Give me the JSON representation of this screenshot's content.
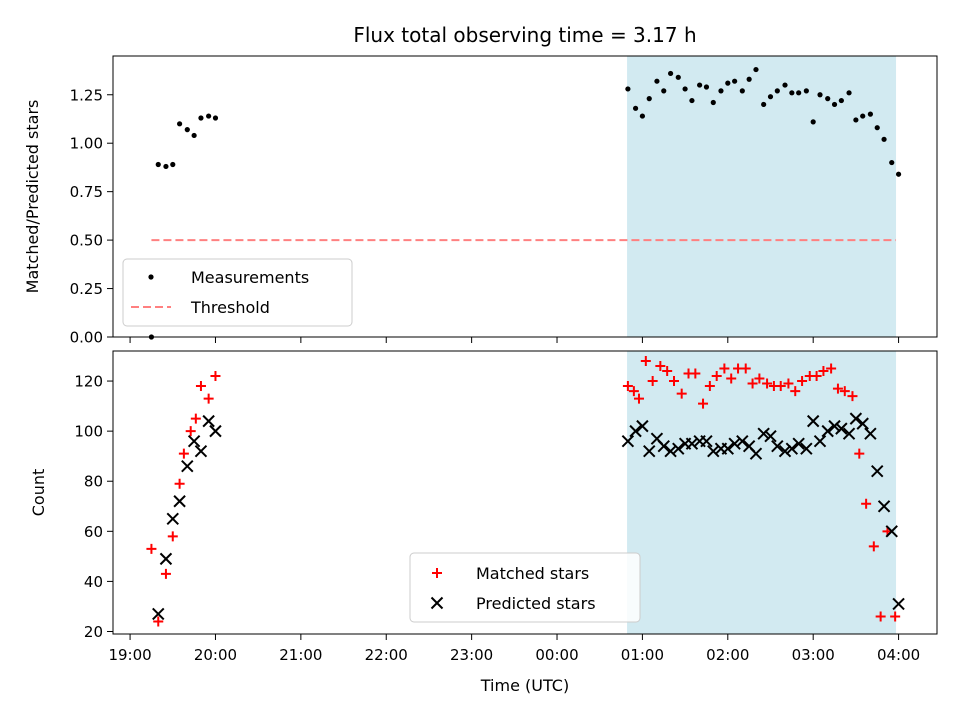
{
  "title": "Flux total observing time = 3.17 h",
  "chart_data": [
    {
      "type": "scatter",
      "ylabel": "Matched/Predicted stars",
      "xlim_hours": [
        18.8,
        28.45
      ],
      "ylim": [
        0,
        1.45
      ],
      "yticks": [
        "0.00",
        "0.25",
        "0.50",
        "0.75",
        "1.00",
        "1.25"
      ],
      "ytick_values": [
        0,
        0.25,
        0.5,
        0.75,
        1.0,
        1.25
      ],
      "shaded_span_hours": [
        24.82,
        27.97
      ],
      "shade_color": "#add8e6",
      "threshold": {
        "name": "Threshold",
        "value": 0.5,
        "x_range_hours": [
          19.25,
          27.97
        ],
        "color": "#ff8080"
      },
      "legend": {
        "placement": "lower left",
        "entries": [
          "Measurements",
          "Threshold"
        ]
      },
      "series": [
        {
          "name": "Measurements",
          "marker": "dot",
          "color": "#000000",
          "x": [
            19.25,
            19.33,
            19.42,
            19.5,
            19.58,
            19.67,
            19.75,
            19.83,
            19.92,
            20.0,
            24.83,
            24.92,
            25.0,
            25.08,
            25.17,
            25.25,
            25.33,
            25.42,
            25.5,
            25.58,
            25.67,
            25.75,
            25.83,
            25.92,
            26.0,
            26.08,
            26.17,
            26.25,
            26.33,
            26.42,
            26.5,
            26.58,
            26.67,
            26.75,
            26.83,
            26.92,
            27.0,
            27.08,
            27.17,
            27.25,
            27.33,
            27.42,
            27.5,
            27.58,
            27.67,
            27.75,
            27.83,
            27.92,
            28.0
          ],
          "y": [
            0.0,
            0.89,
            0.88,
            0.89,
            1.1,
            1.07,
            1.04,
            1.13,
            1.14,
            1.13,
            1.28,
            1.18,
            1.14,
            1.23,
            1.32,
            1.27,
            1.36,
            1.34,
            1.28,
            1.22,
            1.3,
            1.29,
            1.21,
            1.27,
            1.31,
            1.32,
            1.27,
            1.33,
            1.38,
            1.2,
            1.24,
            1.27,
            1.3,
            1.26,
            1.26,
            1.27,
            1.11,
            1.25,
            1.23,
            1.2,
            1.22,
            1.26,
            1.12,
            1.14,
            1.15,
            1.08,
            1.02,
            0.9,
            0.84
          ]
        }
      ]
    },
    {
      "type": "scatter",
      "ylabel": "Count",
      "xlabel": "Time (UTC)",
      "xlim_hours": [
        18.8,
        28.45
      ],
      "ylim": [
        19,
        132
      ],
      "yticks": [
        "20",
        "40",
        "60",
        "80",
        "100",
        "120"
      ],
      "ytick_values": [
        20,
        40,
        60,
        80,
        100,
        120
      ],
      "xticks": [
        "19:00",
        "20:00",
        "21:00",
        "22:00",
        "23:00",
        "00:00",
        "01:00",
        "02:00",
        "03:00",
        "04:00"
      ],
      "xtick_values_hours": [
        19,
        20,
        21,
        22,
        23,
        24,
        25,
        26,
        27,
        28
      ],
      "shaded_span_hours": [
        24.82,
        27.97
      ],
      "shade_color": "#add8e6",
      "legend": {
        "placement": "lower center",
        "entries": [
          "Matched stars",
          "Predicted stars"
        ]
      },
      "series": [
        {
          "name": "Matched stars",
          "marker": "plus",
          "color": "#ff0000",
          "x": [
            19.25,
            19.33,
            19.42,
            19.5,
            19.58,
            19.63,
            19.71,
            19.77,
            19.83,
            19.92,
            20.0,
            24.83,
            24.9,
            24.96,
            25.04,
            25.12,
            25.21,
            25.29,
            25.37,
            25.46,
            25.54,
            25.62,
            25.71,
            25.79,
            25.87,
            25.96,
            26.04,
            26.12,
            26.21,
            26.29,
            26.37,
            26.46,
            26.54,
            26.62,
            26.71,
            26.79,
            26.87,
            26.96,
            27.04,
            27.12,
            27.21,
            27.29,
            27.37,
            27.46,
            27.54,
            27.62,
            27.71,
            27.79,
            27.87,
            27.96
          ],
          "y": [
            53,
            24,
            43,
            58,
            79,
            91,
            100,
            105,
            118,
            113,
            122,
            118,
            116,
            113,
            128,
            120,
            126,
            124,
            120,
            115,
            123,
            123,
            111,
            118,
            122,
            125,
            121,
            125,
            125,
            119,
            121,
            119,
            118,
            118,
            119,
            116,
            120,
            122,
            122,
            124,
            125,
            117,
            116,
            114,
            91,
            71,
            54,
            26,
            60,
            26
          ]
        },
        {
          "name": "Predicted stars",
          "marker": "x",
          "color": "#000000",
          "x": [
            19.33,
            19.42,
            19.5,
            19.58,
            19.67,
            19.75,
            19.83,
            19.92,
            20.0,
            24.83,
            24.92,
            25.0,
            25.08,
            25.17,
            25.25,
            25.33,
            25.42,
            25.5,
            25.58,
            25.67,
            25.75,
            25.83,
            25.92,
            26.0,
            26.08,
            26.17,
            26.25,
            26.33,
            26.42,
            26.5,
            26.58,
            26.67,
            26.75,
            26.83,
            26.92,
            27.0,
            27.08,
            27.17,
            27.25,
            27.33,
            27.42,
            27.5,
            27.58,
            27.67,
            27.75,
            27.83,
            27.92,
            28.0
          ],
          "y": [
            27,
            49,
            65,
            72,
            86,
            96,
            92,
            104,
            100,
            96,
            100,
            102,
            92,
            97,
            94,
            92,
            93,
            95,
            95,
            96,
            96,
            92,
            93,
            93,
            95,
            96,
            94,
            91,
            99,
            98,
            94,
            92,
            93,
            95,
            93,
            104,
            96,
            100,
            102,
            101,
            99,
            105,
            103,
            99,
            84,
            70,
            60,
            31
          ]
        }
      ]
    }
  ]
}
